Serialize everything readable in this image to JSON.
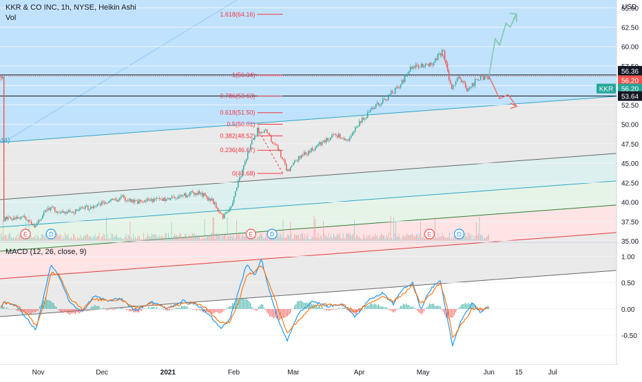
{
  "header": {
    "title": "KKR & CO INC, 1h, NYSE, Heikin Ashi",
    "vol_label": "Vol",
    "macd_label": "MACD (12, 26, close, 9)",
    "currency": "USD",
    "left_cut_label": "44)"
  },
  "colors": {
    "candle_up": "#26a69a",
    "candle_down": "#ef5350",
    "macd_line": "#2196f3",
    "signal_line": "#ff6d00",
    "fib_label": "#f23645",
    "channel_blue": "#2aa6c8",
    "projection_up": "#7cc7a9",
    "projection_down": "#ef6e6e",
    "price_badge": "#ef5350",
    "symbol_badge": "#26a69a"
  },
  "chart_data": [
    {
      "type": "candlestick",
      "title": "KKR & CO INC, 1h, NYSE, Heikin Ashi",
      "x_ticks": [
        "Nov",
        "Dec",
        "2021",
        "Feb",
        "Mar",
        "Apr",
        "May",
        "Jun",
        "15",
        "Jul"
      ],
      "y_ticks": [
        35.0,
        37.5,
        40.0,
        42.5,
        45.0,
        47.5,
        50.0,
        52.5,
        55.0,
        57.5,
        60.0,
        62.5,
        65.0
      ],
      "ylim": [
        35,
        66
      ],
      "price_path": [
        {
          "x": "2020-10-15",
          "y": 37.8
        },
        {
          "x": "2020-10-25",
          "y": 38.2
        },
        {
          "x": "2020-10-30",
          "y": 36.6
        },
        {
          "x": "2020-11-05",
          "y": 39.4
        },
        {
          "x": "2020-11-12",
          "y": 38.6
        },
        {
          "x": "2020-11-20",
          "y": 39.0
        },
        {
          "x": "2020-12-01",
          "y": 39.8
        },
        {
          "x": "2020-12-10",
          "y": 40.6
        },
        {
          "x": "2020-12-18",
          "y": 40.0
        },
        {
          "x": "2020-12-28",
          "y": 40.3
        },
        {
          "x": "2021-01-07",
          "y": 40.8
        },
        {
          "x": "2021-01-15",
          "y": 41.2
        },
        {
          "x": "2021-01-21",
          "y": 40.3
        },
        {
          "x": "2021-01-27",
          "y": 38.0
        },
        {
          "x": "2021-01-31",
          "y": 39.8
        },
        {
          "x": "2021-02-04",
          "y": 43.5
        },
        {
          "x": "2021-02-08",
          "y": 47.0
        },
        {
          "x": "2021-02-12",
          "y": 49.3
        },
        {
          "x": "2021-02-16",
          "y": 49.0
        },
        {
          "x": "2021-02-22",
          "y": 46.5
        },
        {
          "x": "2021-02-26",
          "y": 44.0
        },
        {
          "x": "2021-03-04",
          "y": 45.8
        },
        {
          "x": "2021-03-12",
          "y": 47.2
        },
        {
          "x": "2021-03-20",
          "y": 48.8
        },
        {
          "x": "2021-03-26",
          "y": 48.0
        },
        {
          "x": "2021-04-02",
          "y": 50.5
        },
        {
          "x": "2021-04-08",
          "y": 52.2
        },
        {
          "x": "2021-04-14",
          "y": 53.5
        },
        {
          "x": "2021-04-20",
          "y": 55.0
        },
        {
          "x": "2021-04-25",
          "y": 57.2
        },
        {
          "x": "2021-04-30",
          "y": 57.5
        },
        {
          "x": "2021-05-05",
          "y": 57.8
        },
        {
          "x": "2021-05-10",
          "y": 59.5
        },
        {
          "x": "2021-05-14",
          "y": 54.8
        },
        {
          "x": "2021-05-18",
          "y": 56.0
        },
        {
          "x": "2021-05-22",
          "y": 54.3
        },
        {
          "x": "2021-05-26",
          "y": 55.8
        },
        {
          "x": "2021-06-01",
          "y": 56.2
        }
      ],
      "fib_retracement": [
        {
          "label": "1.618(64.16)",
          "value": 64.16
        },
        {
          "label": "1(56.34)",
          "value": 56.34
        },
        {
          "label": "0.786(53.63)",
          "value": 53.63
        },
        {
          "label": "0.618(51.50)",
          "value": 51.5
        },
        {
          "label": "0.5(50.01)",
          "value": 50.01
        },
        {
          "label": "0.382(48.52)",
          "value": 48.52
        },
        {
          "label": "0.236(46.67)",
          "value": 46.67
        },
        {
          "label": "0(43.68)",
          "value": 43.68
        }
      ],
      "horizontal_lines": [
        56.36,
        53.64
      ],
      "price_labels": [
        {
          "text": "56.36",
          "value": 56.36,
          "style": "dark"
        },
        {
          "text": "56.20",
          "value": 56.2,
          "style": "red"
        },
        {
          "text": "56.20",
          "value": 56.2,
          "style": "symbol"
        },
        {
          "text": "53.64",
          "value": 53.64,
          "style": "dark"
        }
      ],
      "symbol": "KKR",
      "projection_up": [
        {
          "x": "2021-06-01",
          "y": 56.3
        },
        {
          "x": "2021-06-04",
          "y": 61.0
        },
        {
          "x": "2021-06-06",
          "y": 60.2
        },
        {
          "x": "2021-06-09",
          "y": 63.0
        },
        {
          "x": "2021-06-11",
          "y": 62.5
        },
        {
          "x": "2021-06-14",
          "y": 64.2
        },
        {
          "x": "2021-06-14",
          "y": 63.2
        }
      ],
      "projection_down": [
        {
          "x": "2021-06-01",
          "y": 56.2
        },
        {
          "x": "2021-06-06",
          "y": 53.3
        },
        {
          "x": "2021-06-10",
          "y": 53.8
        },
        {
          "x": "2021-06-14",
          "y": 52.3
        }
      ],
      "events": [
        {
          "label": "E",
          "x": "2020-10-26",
          "kind": "earnings"
        },
        {
          "label": "D",
          "x": "2020-11-07",
          "kind": "dividend"
        },
        {
          "label": "E",
          "x": "2021-02-09",
          "kind": "earnings"
        },
        {
          "label": "D",
          "x": "2021-02-19",
          "kind": "dividend"
        },
        {
          "label": "E",
          "x": "2021-05-04",
          "kind": "earnings"
        },
        {
          "label": "D",
          "x": "2021-05-18",
          "kind": "dividend"
        }
      ]
    },
    {
      "type": "line",
      "title": "MACD (12, 26, close, 9)",
      "y_ticks": [
        1.0,
        0.5,
        0.0,
        -0.5
      ],
      "ylim": [
        -1.02,
        1.2
      ],
      "series": [
        {
          "key": "macd",
          "points": [
            {
              "x": "2020-10-15",
              "y": 0.15
            },
            {
              "x": "2020-10-22",
              "y": 0.05
            },
            {
              "x": "2020-10-28",
              "y": -0.25
            },
            {
              "x": "2020-10-31",
              "y": -0.4
            },
            {
              "x": "2020-11-04",
              "y": 0.3
            },
            {
              "x": "2020-11-07",
              "y": 0.85
            },
            {
              "x": "2020-11-11",
              "y": 0.6
            },
            {
              "x": "2020-11-16",
              "y": 0.1
            },
            {
              "x": "2020-11-22",
              "y": -0.05
            },
            {
              "x": "2020-11-27",
              "y": 0.25
            },
            {
              "x": "2020-12-04",
              "y": 0.15
            },
            {
              "x": "2020-12-10",
              "y": 0.2
            },
            {
              "x": "2020-12-17",
              "y": -0.05
            },
            {
              "x": "2020-12-24",
              "y": 0.15
            },
            {
              "x": "2021-01-01",
              "y": 0.0
            },
            {
              "x": "2021-01-08",
              "y": 0.15
            },
            {
              "x": "2021-01-14",
              "y": 0.1
            },
            {
              "x": "2021-01-20",
              "y": -0.1
            },
            {
              "x": "2021-01-26",
              "y": -0.35
            },
            {
              "x": "2021-01-30",
              "y": -0.2
            },
            {
              "x": "2021-02-03",
              "y": 0.3
            },
            {
              "x": "2021-02-07",
              "y": 0.85
            },
            {
              "x": "2021-02-11",
              "y": 0.65
            },
            {
              "x": "2021-02-14",
              "y": 0.95
            },
            {
              "x": "2021-02-18",
              "y": 0.3
            },
            {
              "x": "2021-02-22",
              "y": -0.2
            },
            {
              "x": "2021-02-26",
              "y": -0.6
            },
            {
              "x": "2021-03-03",
              "y": -0.1
            },
            {
              "x": "2021-03-10",
              "y": 0.15
            },
            {
              "x": "2021-03-17",
              "y": 0.05
            },
            {
              "x": "2021-03-24",
              "y": 0.1
            },
            {
              "x": "2021-03-30",
              "y": -0.15
            },
            {
              "x": "2021-04-06",
              "y": 0.2
            },
            {
              "x": "2021-04-12",
              "y": 0.3
            },
            {
              "x": "2021-04-17",
              "y": 0.1
            },
            {
              "x": "2021-04-22",
              "y": 0.4
            },
            {
              "x": "2021-04-26",
              "y": 0.5
            },
            {
              "x": "2021-04-30",
              "y": 0.0
            },
            {
              "x": "2021-05-04",
              "y": 0.35
            },
            {
              "x": "2021-05-09",
              "y": 0.55
            },
            {
              "x": "2021-05-12",
              "y": -0.1
            },
            {
              "x": "2021-05-15",
              "y": -0.7
            },
            {
              "x": "2021-05-19",
              "y": -0.2
            },
            {
              "x": "2021-05-24",
              "y": 0.1
            },
            {
              "x": "2021-05-28",
              "y": -0.05
            },
            {
              "x": "2021-06-01",
              "y": 0.05
            }
          ]
        },
        {
          "key": "signal",
          "points": [
            {
              "x": "2020-10-15",
              "y": 0.12
            },
            {
              "x": "2020-10-22",
              "y": 0.07
            },
            {
              "x": "2020-10-28",
              "y": -0.15
            },
            {
              "x": "2020-10-31",
              "y": -0.33
            },
            {
              "x": "2020-11-04",
              "y": 0.1
            },
            {
              "x": "2020-11-07",
              "y": 0.7
            },
            {
              "x": "2020-11-11",
              "y": 0.65
            },
            {
              "x": "2020-11-16",
              "y": 0.2
            },
            {
              "x": "2020-11-22",
              "y": 0.0
            },
            {
              "x": "2020-11-27",
              "y": 0.18
            },
            {
              "x": "2020-12-04",
              "y": 0.17
            },
            {
              "x": "2020-12-10",
              "y": 0.18
            },
            {
              "x": "2020-12-17",
              "y": 0.02
            },
            {
              "x": "2020-12-24",
              "y": 0.1
            },
            {
              "x": "2021-01-01",
              "y": 0.03
            },
            {
              "x": "2021-01-08",
              "y": 0.1
            },
            {
              "x": "2021-01-14",
              "y": 0.12
            },
            {
              "x": "2021-01-20",
              "y": -0.02
            },
            {
              "x": "2021-01-26",
              "y": -0.27
            },
            {
              "x": "2021-01-30",
              "y": -0.25
            },
            {
              "x": "2021-02-03",
              "y": 0.1
            },
            {
              "x": "2021-02-07",
              "y": 0.65
            },
            {
              "x": "2021-02-11",
              "y": 0.7
            },
            {
              "x": "2021-02-14",
              "y": 0.85
            },
            {
              "x": "2021-02-18",
              "y": 0.45
            },
            {
              "x": "2021-02-22",
              "y": 0.0
            },
            {
              "x": "2021-02-26",
              "y": -0.45
            },
            {
              "x": "2021-03-03",
              "y": -0.25
            },
            {
              "x": "2021-03-10",
              "y": 0.05
            },
            {
              "x": "2021-03-17",
              "y": 0.08
            },
            {
              "x": "2021-03-24",
              "y": 0.08
            },
            {
              "x": "2021-03-30",
              "y": -0.05
            },
            {
              "x": "2021-04-06",
              "y": 0.1
            },
            {
              "x": "2021-04-12",
              "y": 0.25
            },
            {
              "x": "2021-04-17",
              "y": 0.15
            },
            {
              "x": "2021-04-22",
              "y": 0.3
            },
            {
              "x": "2021-04-26",
              "y": 0.45
            },
            {
              "x": "2021-04-30",
              "y": 0.1
            },
            {
              "x": "2021-05-04",
              "y": 0.25
            },
            {
              "x": "2021-05-09",
              "y": 0.5
            },
            {
              "x": "2021-05-12",
              "y": 0.1
            },
            {
              "x": "2021-05-15",
              "y": -0.55
            },
            {
              "x": "2021-05-19",
              "y": -0.3
            },
            {
              "x": "2021-05-24",
              "y": 0.0
            },
            {
              "x": "2021-05-28",
              "y": 0.0
            },
            {
              "x": "2021-06-01",
              "y": 0.02
            }
          ]
        }
      ]
    }
  ]
}
